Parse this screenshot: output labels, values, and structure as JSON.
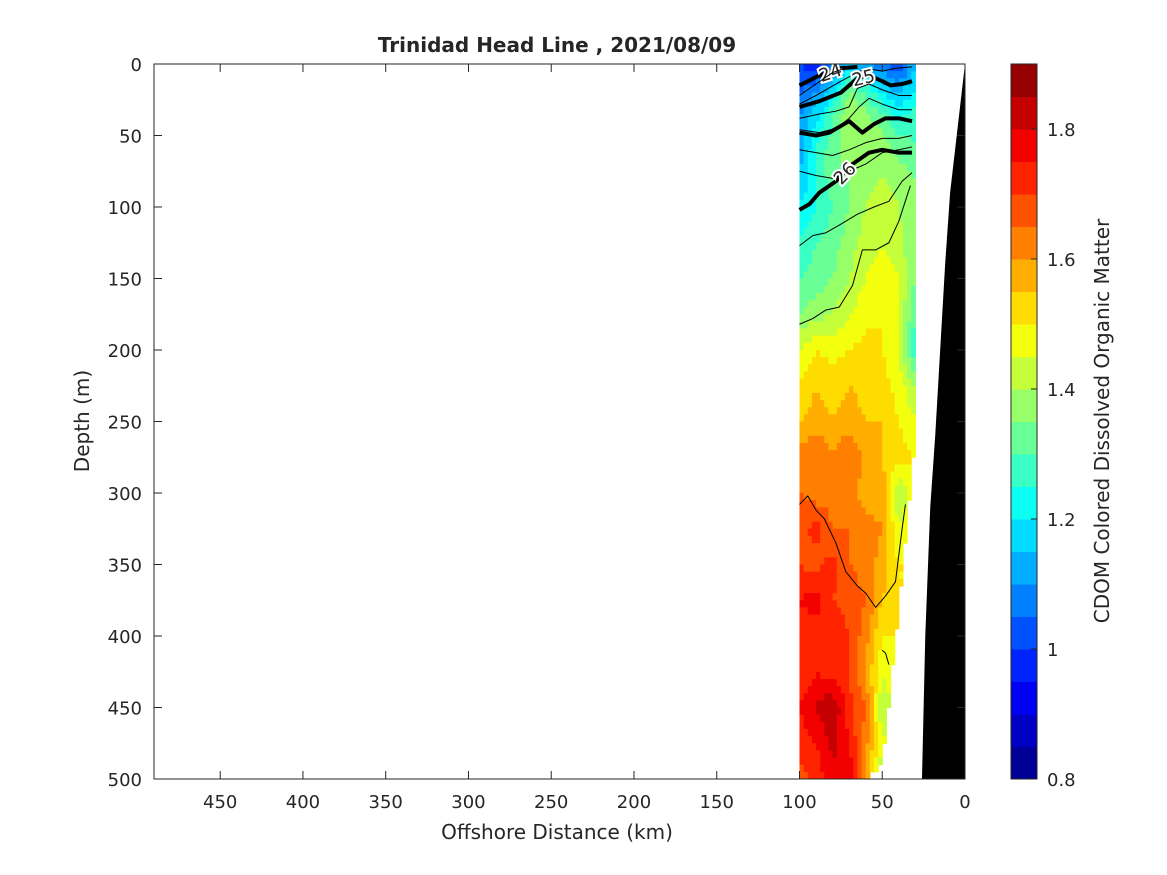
{
  "chart_data": {
    "type": "heatmap",
    "title": "Trinidad Head Line , 2021/08/09",
    "xlabel": "Offshore Distance (km)",
    "ylabel": "Depth (m)",
    "colorbar_label": "CDOM Colored Dissolved Organic Matter",
    "xlim": [
      490,
      0
    ],
    "ylim": [
      0,
      500
    ],
    "x_reversed": true,
    "y_reversed": true,
    "x_ticks": [
      450,
      400,
      350,
      300,
      250,
      200,
      150,
      100,
      50,
      0
    ],
    "y_ticks": [
      0,
      50,
      100,
      150,
      200,
      250,
      300,
      350,
      400,
      450,
      500
    ],
    "color_range": [
      0.8,
      1.9
    ],
    "color_ticks": [
      0.8,
      1,
      1.2,
      1.4,
      1.6,
      1.8
    ],
    "colormap": "jet",
    "colormap_levels": 22,
    "stations_km": [
      100,
      90,
      80,
      70,
      60,
      50,
      40,
      30
    ],
    "depths_m": [
      0,
      20,
      40,
      60,
      80,
      100,
      125,
      150,
      175,
      200,
      225,
      250,
      275,
      300,
      325,
      350,
      375,
      400,
      425,
      450,
      475,
      500
    ],
    "station_max_depth_m": [
      500,
      500,
      500,
      500,
      500,
      490,
      380,
      260
    ],
    "cdom_grid": [
      [
        1.0,
        0.95,
        1.05,
        1.15,
        1.1,
        1.05,
        1.0,
        1.15
      ],
      [
        1.05,
        1.1,
        1.2,
        1.35,
        1.3,
        1.2,
        1.15,
        1.2
      ],
      [
        1.1,
        1.2,
        1.3,
        1.4,
        1.38,
        1.33,
        1.25,
        1.3
      ],
      [
        1.12,
        1.25,
        1.33,
        1.38,
        1.4,
        1.38,
        1.33,
        1.3
      ],
      [
        1.15,
        1.25,
        1.33,
        1.35,
        1.38,
        1.4,
        1.38,
        1.35
      ],
      [
        1.2,
        1.25,
        1.3,
        1.35,
        1.4,
        1.42,
        1.4,
        1.35
      ],
      [
        1.25,
        1.3,
        1.32,
        1.38,
        1.42,
        1.45,
        1.42,
        1.35
      ],
      [
        1.3,
        1.32,
        1.35,
        1.4,
        1.45,
        1.48,
        1.45,
        1.35
      ],
      [
        1.35,
        1.38,
        1.4,
        1.45,
        1.48,
        1.5,
        1.45,
        1.3
      ],
      [
        1.45,
        1.5,
        1.48,
        1.5,
        1.52,
        1.5,
        1.45,
        1.25
      ],
      [
        1.5,
        1.55,
        1.52,
        1.55,
        1.53,
        1.52,
        1.48,
        1.4
      ],
      [
        1.55,
        1.58,
        1.55,
        1.58,
        1.55,
        1.55,
        1.5,
        1.45
      ],
      [
        1.62,
        1.65,
        1.6,
        1.65,
        1.58,
        1.55,
        1.52,
        1.5
      ],
      [
        1.65,
        1.62,
        1.63,
        1.62,
        1.58,
        1.58,
        1.4,
        1.5
      ],
      [
        1.68,
        1.72,
        1.65,
        1.65,
        1.62,
        1.6,
        1.45,
        1.5
      ],
      [
        1.7,
        1.68,
        1.72,
        1.65,
        1.63,
        1.58,
        1.5,
        1.5
      ],
      [
        1.75,
        1.78,
        1.7,
        1.68,
        1.65,
        1.55,
        1.5,
        1.5
      ],
      [
        1.72,
        1.7,
        1.75,
        1.7,
        1.62,
        1.5,
        1.5,
        1.5
      ],
      [
        1.7,
        1.75,
        1.72,
        1.7,
        1.6,
        1.45,
        1.5,
        1.5
      ],
      [
        1.75,
        1.8,
        1.85,
        1.72,
        1.65,
        1.4,
        1.5,
        1.5
      ],
      [
        1.72,
        1.75,
        1.82,
        1.75,
        1.62,
        1.45,
        1.5,
        1.5
      ],
      [
        1.68,
        1.72,
        1.78,
        1.8,
        1.6,
        1.4,
        1.5,
        1.5
      ]
    ],
    "density_contours": [
      {
        "label": "24",
        "heavy": true,
        "labeled": true,
        "points": [
          [
            100,
            15
          ],
          [
            88,
            8
          ],
          [
            75,
            3
          ],
          [
            65,
            2
          ]
        ]
      },
      {
        "label": "",
        "heavy": false,
        "labeled": false,
        "points": [
          [
            100,
            22
          ],
          [
            90,
            14
          ],
          [
            80,
            6
          ],
          [
            70,
            2
          ]
        ]
      },
      {
        "label": "",
        "heavy": false,
        "labeled": false,
        "points": [
          [
            100,
            28
          ],
          [
            90,
            22
          ],
          [
            75,
            12
          ],
          [
            60,
            3
          ],
          [
            50,
            5
          ],
          [
            42,
            3
          ],
          [
            32,
            2
          ]
        ]
      },
      {
        "label": "25",
        "heavy": true,
        "labeled": true,
        "points": [
          [
            100,
            30
          ],
          [
            88,
            26
          ],
          [
            75,
            20
          ],
          [
            65,
            10
          ],
          [
            58,
            8
          ],
          [
            50,
            12
          ],
          [
            45,
            15
          ],
          [
            38,
            14
          ],
          [
            32,
            12
          ]
        ]
      },
      {
        "label": "",
        "heavy": false,
        "labeled": false,
        "points": [
          [
            100,
            38
          ],
          [
            88,
            35
          ],
          [
            78,
            33
          ],
          [
            70,
            30
          ],
          [
            65,
            17
          ],
          [
            58,
            14
          ],
          [
            50,
            18
          ],
          [
            40,
            22
          ],
          [
            32,
            22
          ]
        ]
      },
      {
        "label": "",
        "heavy": false,
        "labeled": false,
        "points": [
          [
            100,
            46
          ],
          [
            88,
            48
          ],
          [
            78,
            45
          ],
          [
            70,
            38
          ],
          [
            64,
            30
          ],
          [
            58,
            24
          ],
          [
            50,
            28
          ],
          [
            40,
            32
          ],
          [
            32,
            32
          ]
        ]
      },
      {
        "label": "",
        "heavy": true,
        "labeled": false,
        "points": [
          [
            100,
            48
          ],
          [
            90,
            50
          ],
          [
            82,
            48
          ],
          [
            70,
            40
          ],
          [
            62,
            48
          ],
          [
            55,
            42
          ],
          [
            48,
            38
          ],
          [
            40,
            38
          ],
          [
            32,
            40
          ]
        ]
      },
      {
        "label": "",
        "heavy": false,
        "labeled": false,
        "points": [
          [
            100,
            60
          ],
          [
            90,
            62
          ],
          [
            80,
            64
          ],
          [
            70,
            60
          ],
          [
            60,
            55
          ],
          [
            50,
            52
          ],
          [
            40,
            52
          ],
          [
            32,
            50
          ]
        ]
      },
      {
        "label": "",
        "heavy": false,
        "labeled": false,
        "points": [
          [
            100,
            75
          ],
          [
            90,
            78
          ],
          [
            80,
            80
          ],
          [
            70,
            75
          ],
          [
            60,
            70
          ],
          [
            50,
            62
          ],
          [
            40,
            60
          ],
          [
            32,
            58
          ]
        ]
      },
      {
        "label": "26",
        "heavy": true,
        "labeled": true,
        "points": [
          [
            100,
            102
          ],
          [
            94,
            98
          ],
          [
            88,
            90
          ],
          [
            78,
            82
          ],
          [
            68,
            70
          ],
          [
            58,
            62
          ],
          [
            50,
            60
          ],
          [
            40,
            62
          ],
          [
            32,
            62
          ]
        ]
      },
      {
        "label": "",
        "heavy": false,
        "labeled": false,
        "points": [
          [
            100,
            127
          ],
          [
            92,
            120
          ],
          [
            84,
            118
          ],
          [
            75,
            112
          ],
          [
            65,
            105
          ],
          [
            55,
            100
          ],
          [
            46,
            96
          ],
          [
            38,
            82
          ],
          [
            32,
            76
          ]
        ]
      },
      {
        "label": "",
        "heavy": false,
        "labeled": false,
        "points": [
          [
            100,
            182
          ],
          [
            92,
            178
          ],
          [
            84,
            172
          ],
          [
            76,
            170
          ],
          [
            68,
            155
          ],
          [
            62,
            130
          ],
          [
            54,
            130
          ],
          [
            46,
            125
          ],
          [
            40,
            110
          ],
          [
            33,
            85
          ]
        ]
      },
      {
        "label": "",
        "heavy": false,
        "labeled": false,
        "points": [
          [
            100,
            308
          ],
          [
            95,
            302
          ],
          [
            90,
            312
          ],
          [
            85,
            318
          ],
          [
            78,
            335
          ],
          [
            72,
            355
          ],
          [
            65,
            365
          ],
          [
            60,
            370
          ],
          [
            54,
            380
          ],
          [
            48,
            372
          ],
          [
            42,
            362
          ],
          [
            38,
            325
          ],
          [
            36,
            308
          ]
        ]
      },
      {
        "label": "",
        "heavy": false,
        "labeled": false,
        "points": [
          [
            50,
            410
          ],
          [
            48,
            412
          ],
          [
            46,
            420
          ]
        ]
      }
    ],
    "seafloor": [
      [
        0,
        0
      ],
      [
        3,
        30
      ],
      [
        6,
        60
      ],
      [
        9,
        90
      ],
      [
        12,
        140
      ],
      [
        15,
        200
      ],
      [
        18,
        260
      ],
      [
        21,
        310
      ],
      [
        24,
        400
      ],
      [
        26,
        500
      ]
    ],
    "grid": false,
    "legend": "none"
  }
}
